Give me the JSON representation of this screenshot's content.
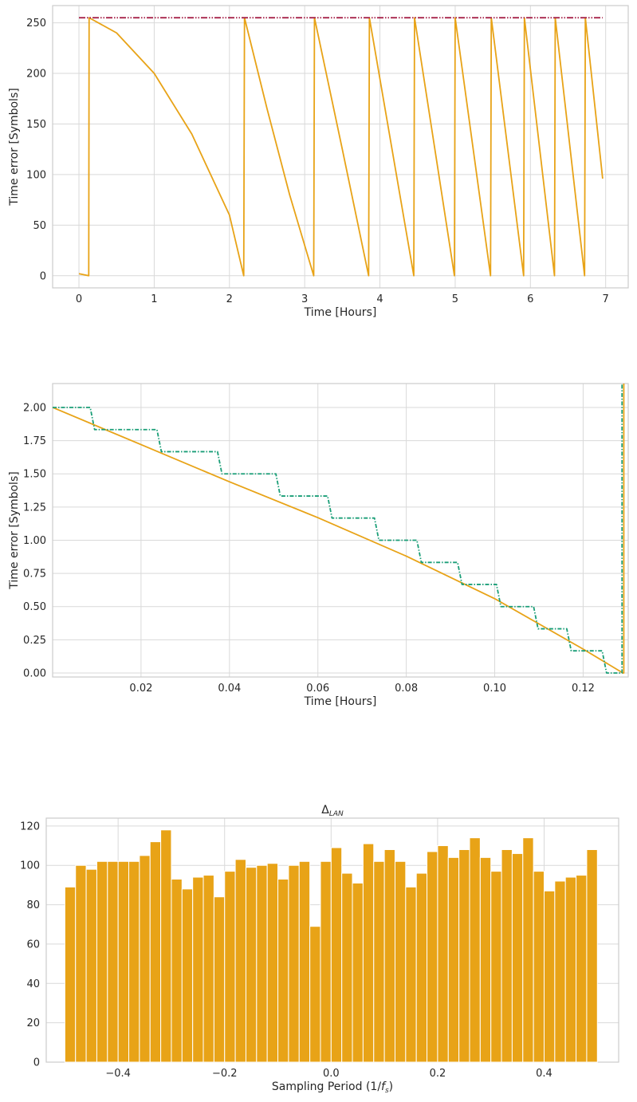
{
  "chart_data": [
    {
      "type": "line",
      "xlabel": "Time [Hours]",
      "ylabel": "Time error [Symbols]",
      "xlim": [
        -0.35,
        7.3
      ],
      "ylim": [
        -12,
        267
      ],
      "xticks": [
        0,
        1,
        2,
        3,
        4,
        5,
        6,
        7
      ],
      "yticks": [
        0,
        50,
        100,
        150,
        200,
        250
      ],
      "tick_labels_x": [
        "0",
        "1",
        "2",
        "3",
        "4",
        "5",
        "6",
        "7"
      ],
      "tick_labels_y": [
        "0",
        "50",
        "100",
        "150",
        "200",
        "250"
      ],
      "grid": true,
      "colors": {
        "series": "#e8a317",
        "limit": "#a0153e"
      },
      "series": [
        {
          "style": "solid",
          "x": [
            0.0,
            0.13,
            0.135,
            0.5,
            1.0,
            1.5,
            2.0,
            2.19,
            2.2,
            2.5,
            2.8,
            3.12,
            3.13,
            3.5,
            3.85,
            3.86,
            4.45,
            4.46,
            4.99,
            5.0,
            5.47,
            5.48,
            5.91,
            5.92,
            6.32,
            6.33,
            6.72,
            6.73,
            6.96
          ],
          "y": [
            2,
            0,
            255,
            240,
            200,
            140,
            60,
            0,
            255,
            165,
            80,
            0,
            255,
            125,
            0,
            255,
            0,
            255,
            0,
            255,
            0,
            255,
            0,
            255,
            0,
            255,
            0,
            255,
            96
          ]
        },
        {
          "style": "dash-dot-dot",
          "x": [
            0.0,
            6.96
          ],
          "y": [
            255,
            255
          ]
        }
      ]
    },
    {
      "type": "line",
      "xlabel": "Time [Hours]",
      "ylabel": "Time error [Symbols]",
      "xlim": [
        0.0,
        0.1302
      ],
      "ylim": [
        -0.03,
        2.18
      ],
      "xticks": [
        0.02,
        0.04,
        0.06,
        0.08,
        0.1,
        0.12
      ],
      "yticks": [
        0.0,
        0.25,
        0.5,
        0.75,
        1.0,
        1.25,
        1.5,
        1.75,
        2.0
      ],
      "tick_labels_x": [
        "0.02",
        "0.04",
        "0.06",
        "0.08",
        "0.10",
        "0.12"
      ],
      "tick_labels_y": [
        "0.00",
        "0.25",
        "0.50",
        "0.75",
        "1.00",
        "1.25",
        "1.50",
        "1.75",
        "2.00"
      ],
      "grid": true,
      "colors": {
        "series": "#e8a317",
        "quantized": "#1a9e77"
      },
      "series": [
        {
          "style": "solid",
          "x": [
            0.0,
            0.02,
            0.04,
            0.06,
            0.08,
            0.1,
            0.12,
            0.129,
            0.1292,
            0.1292
          ],
          "y": [
            2.0,
            1.72,
            1.44,
            1.17,
            0.88,
            0.56,
            0.18,
            0.0,
            0.0,
            2.18
          ]
        },
        {
          "style": "dash-dot",
          "x": [
            0.0,
            0.0085,
            0.0095,
            0.0236,
            0.0246,
            0.0373,
            0.0383,
            0.0505,
            0.0515,
            0.0622,
            0.0632,
            0.0728,
            0.0738,
            0.0824,
            0.0834,
            0.0916,
            0.0926,
            0.1004,
            0.1014,
            0.1088,
            0.1098,
            0.1163,
            0.1173,
            0.1243,
            0.1253,
            0.1288,
            0.1288
          ],
          "y": [
            2.0,
            2.0,
            1.833,
            1.833,
            1.667,
            1.667,
            1.5,
            1.5,
            1.333,
            1.333,
            1.167,
            1.167,
            1.0,
            1.0,
            0.833,
            0.833,
            0.667,
            0.667,
            0.5,
            0.5,
            0.333,
            0.333,
            0.167,
            0.167,
            0.0,
            0.0,
            2.18
          ]
        }
      ]
    },
    {
      "type": "bar",
      "title": "Δ_LAN",
      "xlabel": "Sampling Period (1/f_s)",
      "ylabel": "",
      "xlim": [
        -0.535,
        0.54
      ],
      "ylim": [
        0,
        124
      ],
      "xticks": [
        -0.4,
        -0.2,
        0.0,
        0.2,
        0.4
      ],
      "yticks": [
        0,
        20,
        40,
        60,
        80,
        100,
        120
      ],
      "tick_labels_x": [
        "−0.4",
        "−0.2",
        "0.0",
        "0.2",
        "0.4"
      ],
      "tick_labels_y": [
        "0",
        "20",
        "40",
        "60",
        "80",
        "100",
        "120"
      ],
      "grid": true,
      "colors": {
        "bar": "#e8a317"
      },
      "bin_start": -0.5,
      "bin_width": 0.02,
      "values": [
        89,
        100,
        98,
        102,
        102,
        102,
        102,
        105,
        112,
        118,
        93,
        88,
        94,
        95,
        84,
        97,
        103,
        99,
        100,
        101,
        93,
        100,
        102,
        69,
        102,
        109,
        96,
        91,
        111,
        102,
        108,
        102,
        89,
        96,
        107,
        110,
        104,
        108,
        114,
        104,
        97,
        108,
        106,
        114,
        97,
        87,
        92,
        94,
        95,
        108
      ]
    }
  ]
}
